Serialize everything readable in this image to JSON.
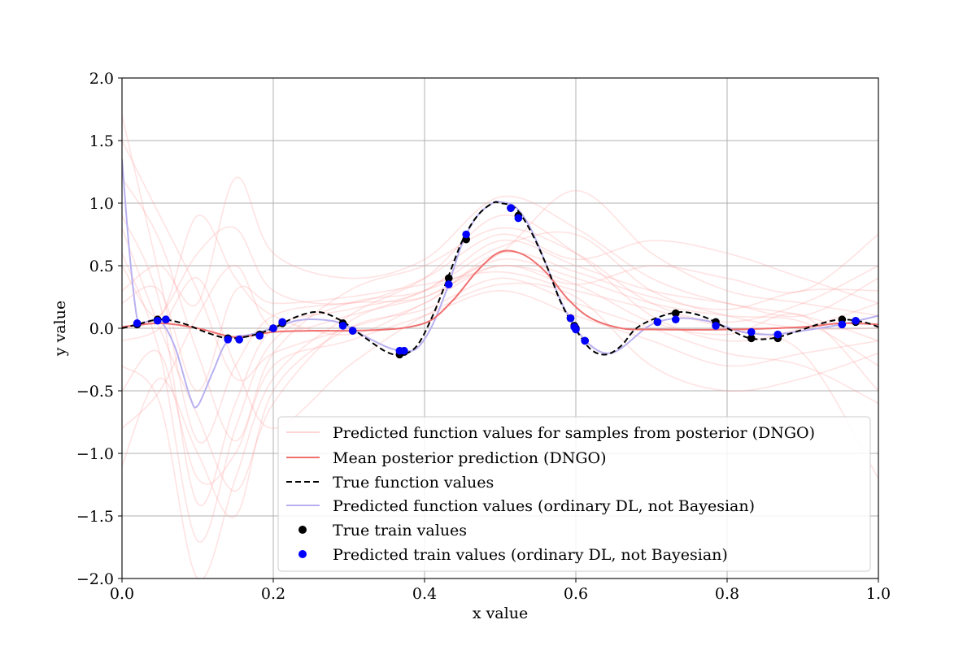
{
  "chart_data": {
    "type": "line",
    "xlabel": "x value",
    "ylabel": "y value",
    "xlim": [
      0.0,
      1.0
    ],
    "ylim": [
      -2.0,
      2.0
    ],
    "grid": true,
    "legend_placement": "lower-right",
    "xticks": [
      0.0,
      0.2,
      0.4,
      0.6,
      0.8,
      1.0
    ],
    "xtick_labels": [
      "0.0",
      "0.2",
      "0.4",
      "0.6",
      "0.8",
      "1.0"
    ],
    "yticks": [
      2.0,
      1.5,
      1.0,
      0.5,
      0.0,
      -0.5,
      -1.0,
      -1.5,
      -2.0
    ],
    "ytick_labels": [
      "2.0",
      "1.5",
      "1.0",
      "0.5",
      "0.0",
      "−0.5",
      "−1.0",
      "−1.5",
      "−2.0"
    ],
    "legend": [
      "Predicted function values for samples from posterior (DNGO)",
      "Mean posterior prediction (DNGO)",
      "True function values",
      "Predicted function values (ordinary DL, not Bayesian)",
      "True train values",
      "Predicted train values (ordinary DL, not Bayesian)"
    ],
    "colors": {
      "samples": "#ff9999",
      "mean": "#f07070",
      "true": "#000000",
      "dl": "#b8b0f0",
      "true_points": "#000000",
      "pred_points": "#0000ff"
    },
    "series": [
      {
        "name": "Mean posterior prediction (DNGO)",
        "x": [
          0.0,
          0.05,
          0.1,
          0.15,
          0.2,
          0.25,
          0.3,
          0.35,
          0.38,
          0.41,
          0.44,
          0.47,
          0.5,
          0.53,
          0.56,
          0.59,
          0.62,
          0.66,
          0.7,
          0.8,
          0.9,
          0.95,
          1.0
        ],
        "y": [
          0.01,
          0.04,
          0.0,
          -0.07,
          -0.03,
          -0.02,
          -0.02,
          -0.01,
          0.01,
          0.07,
          0.24,
          0.46,
          0.61,
          0.59,
          0.45,
          0.23,
          0.08,
          0.0,
          -0.01,
          -0.01,
          0.01,
          0.04,
          0.03
        ]
      },
      {
        "name": "True function values",
        "x": [
          0.0,
          0.02,
          0.05,
          0.08,
          0.11,
          0.14,
          0.17,
          0.2,
          0.23,
          0.26,
          0.29,
          0.32,
          0.35,
          0.37,
          0.39,
          0.41,
          0.43,
          0.45,
          0.47,
          0.49,
          0.5,
          0.52,
          0.54,
          0.56,
          0.58,
          0.6,
          0.62,
          0.64,
          0.66,
          0.68,
          0.71,
          0.74,
          0.77,
          0.8,
          0.83,
          0.86,
          0.89,
          0.92,
          0.95,
          0.98,
          1.0
        ],
        "y": [
          0.0,
          0.03,
          0.07,
          0.04,
          -0.03,
          -0.08,
          -0.06,
          0.0,
          0.09,
          0.13,
          0.06,
          -0.07,
          -0.19,
          -0.21,
          -0.14,
          0.09,
          0.39,
          0.7,
          0.9,
          1.0,
          1.0,
          0.96,
          0.78,
          0.52,
          0.21,
          -0.01,
          -0.17,
          -0.21,
          -0.14,
          0.0,
          0.09,
          0.13,
          0.09,
          0.0,
          -0.08,
          -0.08,
          -0.03,
          0.03,
          0.07,
          0.05,
          0.01
        ]
      },
      {
        "name": "Predicted function values (ordinary DL, not Bayesian)",
        "x": [
          0.0,
          0.01,
          0.02,
          0.03,
          0.05,
          0.07,
          0.09,
          0.1,
          0.12,
          0.14,
          0.17,
          0.2,
          0.23,
          0.26,
          0.29,
          0.32,
          0.35,
          0.37,
          0.39,
          0.41,
          0.43,
          0.45,
          0.47,
          0.49,
          0.5,
          0.52,
          0.54,
          0.56,
          0.58,
          0.6,
          0.62,
          0.64,
          0.66,
          0.7,
          0.74,
          0.78,
          0.82,
          0.86,
          0.9,
          0.95,
          1.0
        ],
        "y": [
          1.35,
          0.6,
          0.08,
          0.05,
          0.06,
          -0.15,
          -0.55,
          -0.62,
          -0.35,
          -0.1,
          -0.05,
          0.0,
          0.06,
          0.07,
          0.04,
          -0.06,
          -0.15,
          -0.18,
          -0.16,
          0.02,
          0.32,
          0.68,
          0.9,
          1.0,
          1.01,
          0.97,
          0.8,
          0.52,
          0.22,
          0.0,
          -0.14,
          -0.2,
          -0.16,
          0.03,
          0.08,
          0.05,
          -0.03,
          -0.05,
          -0.02,
          0.03,
          0.1
        ]
      }
    ],
    "samples": [
      {
        "x": [
          0.0,
          0.05,
          0.1,
          0.15,
          0.2,
          0.3,
          0.4,
          0.5,
          0.6,
          0.7,
          0.8,
          0.9,
          1.0
        ],
        "y": [
          1.7,
          0.4,
          -0.9,
          -0.3,
          0.1,
          0.2,
          0.25,
          0.55,
          0.4,
          0.2,
          0.1,
          0.05,
          -0.3
        ]
      },
      {
        "x": [
          0.0,
          0.05,
          0.1,
          0.15,
          0.2,
          0.3,
          0.4,
          0.5,
          0.6,
          0.7,
          0.8,
          0.9,
          1.0
        ],
        "y": [
          0.9,
          0.2,
          -1.4,
          -0.6,
          0.0,
          0.15,
          0.3,
          0.7,
          0.5,
          0.3,
          0.2,
          0.1,
          0.4
        ]
      },
      {
        "x": [
          0.0,
          0.05,
          0.1,
          0.15,
          0.2,
          0.3,
          0.4,
          0.5,
          0.6,
          0.7,
          0.8,
          0.9,
          1.0
        ],
        "y": [
          -0.3,
          -0.6,
          -2.0,
          -1.2,
          -0.4,
          0.1,
          0.4,
          0.9,
          0.6,
          0.1,
          -0.1,
          0.0,
          0.2
        ]
      },
      {
        "x": [
          0.0,
          0.05,
          0.1,
          0.15,
          0.2,
          0.3,
          0.4,
          0.5,
          0.6,
          0.7,
          0.8,
          0.9,
          1.0
        ],
        "y": [
          0.5,
          0.1,
          0.9,
          0.4,
          0.1,
          -0.05,
          0.2,
          0.5,
          0.35,
          0.5,
          0.4,
          0.3,
          0.75
        ]
      },
      {
        "x": [
          0.0,
          0.05,
          0.1,
          0.15,
          0.2,
          0.3,
          0.4,
          0.5,
          0.6,
          0.7,
          0.8,
          0.9,
          1.0
        ],
        "y": [
          -1.1,
          -0.4,
          -1.0,
          -1.5,
          -0.5,
          0.0,
          0.15,
          0.4,
          0.2,
          0.0,
          -0.2,
          -0.3,
          -0.6
        ]
      },
      {
        "x": [
          0.0,
          0.05,
          0.1,
          0.15,
          0.2,
          0.3,
          0.4,
          0.5,
          0.6,
          0.7,
          0.8,
          0.9,
          1.0
        ],
        "y": [
          0.3,
          0.5,
          0.2,
          1.2,
          0.6,
          0.4,
          0.55,
          1.05,
          0.8,
          0.4,
          0.2,
          0.1,
          -0.1
        ]
      },
      {
        "x": [
          0.0,
          0.05,
          0.1,
          0.15,
          0.2,
          0.3,
          0.4,
          0.5,
          0.6,
          0.7,
          0.8,
          0.9,
          1.0
        ],
        "y": [
          1.2,
          0.7,
          -0.2,
          -0.9,
          -0.2,
          0.3,
          0.5,
          0.8,
          0.6,
          0.2,
          0.05,
          0.2,
          0.5
        ]
      },
      {
        "x": [
          0.0,
          0.05,
          0.1,
          0.15,
          0.2,
          0.3,
          0.4,
          0.5,
          0.6,
          0.7,
          0.8,
          0.9,
          1.0
        ],
        "y": [
          -0.1,
          0.0,
          0.4,
          -0.3,
          -0.8,
          -0.3,
          0.1,
          0.35,
          0.25,
          -0.3,
          -0.5,
          -0.4,
          -0.2
        ]
      },
      {
        "x": [
          0.0,
          0.05,
          0.1,
          0.15,
          0.2,
          0.3,
          0.4,
          0.5,
          0.6,
          0.7,
          0.8,
          0.9,
          1.0
        ],
        "y": [
          0.6,
          -0.2,
          -1.7,
          -0.8,
          -0.1,
          0.2,
          0.3,
          0.6,
          1.1,
          0.6,
          0.3,
          0.2,
          0.1
        ]
      },
      {
        "x": [
          0.0,
          0.05,
          0.1,
          0.15,
          0.2,
          0.3,
          0.4,
          0.5,
          0.6,
          0.7,
          0.8,
          0.9,
          1.0
        ],
        "y": [
          0.2,
          0.3,
          -0.5,
          0.3,
          0.2,
          0.25,
          0.35,
          0.45,
          0.3,
          0.15,
          0.0,
          -0.2,
          -1.2
        ]
      },
      {
        "x": [
          0.0,
          0.05,
          0.1,
          0.15,
          0.2,
          0.3,
          0.4,
          0.5,
          0.6,
          0.7,
          0.8,
          0.9,
          1.0
        ],
        "y": [
          1.5,
          0.9,
          0.3,
          -0.4,
          -0.2,
          0.0,
          0.2,
          0.6,
          0.45,
          0.25,
          0.15,
          0.3,
          0.3
        ]
      },
      {
        "x": [
          0.0,
          0.05,
          0.1,
          0.15,
          0.2,
          0.3,
          0.4,
          0.5,
          0.6,
          0.7,
          0.8,
          0.9,
          1.0
        ],
        "y": [
          -0.5,
          -0.2,
          -1.2,
          -1.0,
          -0.3,
          -0.1,
          0.1,
          0.3,
          0.1,
          -0.1,
          -0.3,
          -0.2,
          -0.1
        ]
      },
      {
        "x": [
          0.0,
          0.05,
          0.1,
          0.15,
          0.2,
          0.3,
          0.4,
          0.5,
          0.6,
          0.7,
          0.8,
          0.9,
          1.0
        ],
        "y": [
          0.0,
          0.1,
          0.6,
          0.8,
          0.3,
          0.2,
          0.4,
          0.75,
          0.55,
          0.7,
          0.6,
          0.4,
          0.2
        ]
      },
      {
        "x": [
          0.0,
          0.05,
          0.1,
          0.15,
          0.2,
          0.3,
          0.4,
          0.5,
          0.6,
          0.7,
          0.8,
          0.9,
          1.0
        ],
        "y": [
          0.8,
          0.0,
          -0.7,
          -1.3,
          -0.6,
          0.05,
          0.25,
          0.5,
          0.35,
          0.05,
          -0.05,
          0.1,
          -0.5
        ]
      },
      {
        "x": [
          0.0,
          0.05,
          0.1,
          0.15,
          0.2,
          0.3,
          0.4,
          0.5,
          0.6,
          0.7,
          0.8,
          0.9,
          1.0
        ],
        "y": [
          -0.8,
          -0.5,
          0.1,
          0.5,
          0.0,
          0.1,
          0.3,
          0.65,
          0.75,
          0.3,
          0.1,
          0.0,
          0.0
        ]
      }
    ],
    "true_train": {
      "x": [
        0.02,
        0.047,
        0.058,
        0.14,
        0.155,
        0.182,
        0.2,
        0.212,
        0.292,
        0.305,
        0.367,
        0.373,
        0.432,
        0.455,
        0.514,
        0.524,
        0.593,
        0.598,
        0.6,
        0.612,
        0.708,
        0.732,
        0.785,
        0.832,
        0.867,
        0.952,
        0.97
      ],
      "y": [
        0.03,
        0.07,
        0.07,
        -0.08,
        -0.09,
        -0.05,
        0.0,
        0.04,
        0.04,
        -0.02,
        -0.21,
        -0.19,
        0.4,
        0.71,
        0.96,
        0.9,
        0.08,
        0.02,
        0.0,
        -0.1,
        0.05,
        0.12,
        0.05,
        -0.08,
        -0.08,
        0.07,
        0.05
      ]
    },
    "pred_train": {
      "x": [
        0.02,
        0.047,
        0.058,
        0.14,
        0.155,
        0.182,
        0.2,
        0.212,
        0.292,
        0.305,
        0.367,
        0.373,
        0.432,
        0.455,
        0.514,
        0.524,
        0.593,
        0.598,
        0.6,
        0.612,
        0.708,
        0.732,
        0.785,
        0.832,
        0.867,
        0.952,
        0.97
      ],
      "y": [
        0.04,
        0.06,
        0.07,
        -0.09,
        -0.09,
        -0.06,
        0.0,
        0.05,
        0.02,
        -0.02,
        -0.18,
        -0.18,
        0.35,
        0.75,
        0.96,
        0.88,
        0.08,
        0.01,
        -0.01,
        -0.1,
        0.05,
        0.07,
        0.02,
        -0.03,
        -0.05,
        0.03,
        0.06
      ]
    }
  }
}
